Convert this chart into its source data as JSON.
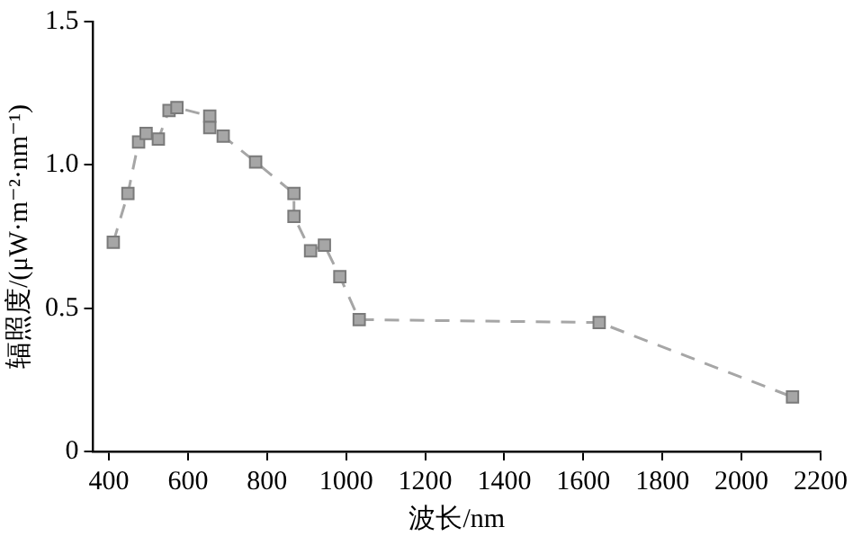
{
  "chart_data": {
    "type": "line",
    "xlabel": "波长/nm",
    "ylabel": "辐照度/(μW·m⁻²·nm⁻¹)",
    "xlim": [
      360,
      2200
    ],
    "xticks": [
      400,
      600,
      800,
      1000,
      1200,
      1400,
      1600,
      1800,
      2000,
      2200
    ],
    "ylim": [
      0,
      1.5
    ],
    "yticks": [
      0,
      {
        "value": 0.5,
        "label": "0.5"
      },
      {
        "value": 1,
        "label": "1.0"
      },
      1.5
    ],
    "grid": false,
    "legend": false,
    "marker": "square",
    "line_style": "dashed",
    "series": [
      {
        "color": "#a6a6a6",
        "x": [
          411,
          448,
          475,
          494,
          525,
          552,
          572,
          655,
          655,
          689,
          771,
          868,
          868,
          910,
          945,
          984,
          1033,
          1640,
          2129
        ],
        "values": [
          0.73,
          0.9,
          1.08,
          1.11,
          1.09,
          1.19,
          1.2,
          1.17,
          1.13,
          1.1,
          1.01,
          0.9,
          0.82,
          0.7,
          0.72,
          0.61,
          0.46,
          0.45,
          0.19
        ]
      }
    ]
  }
}
